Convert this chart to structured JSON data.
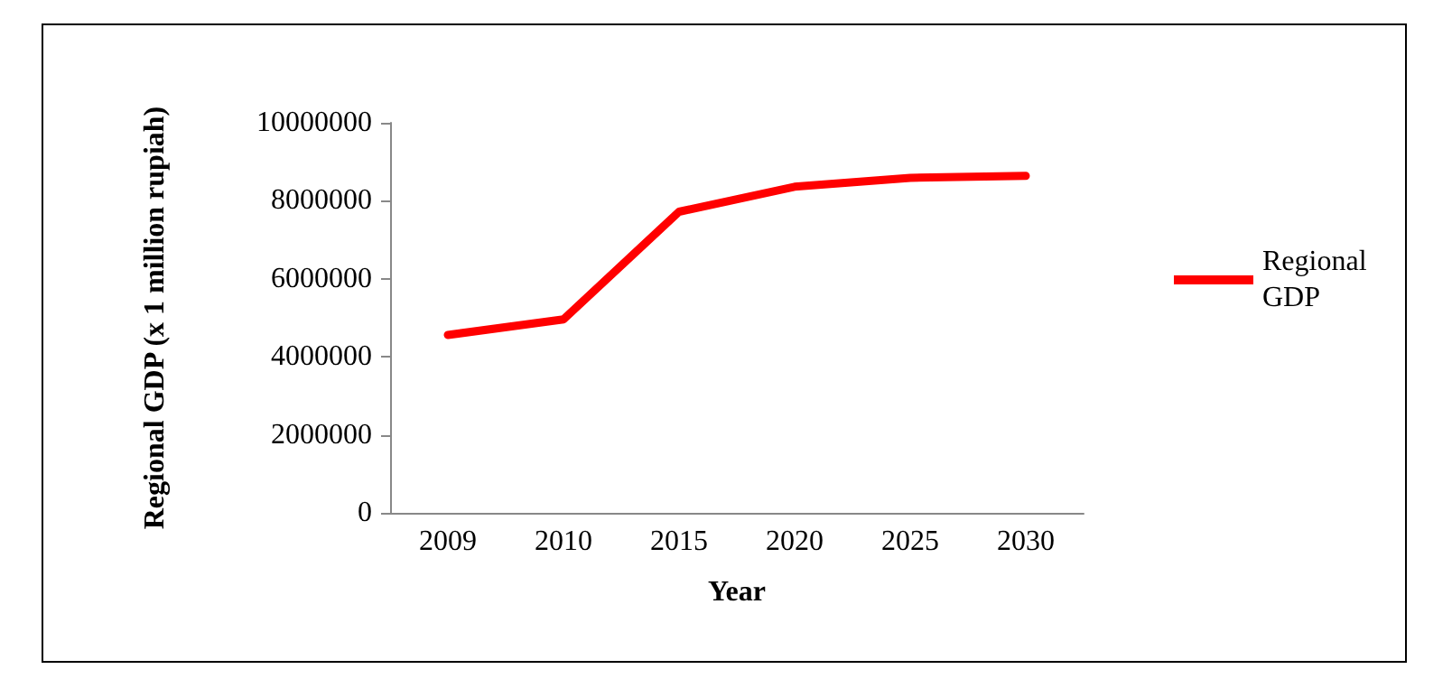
{
  "chart_data": {
    "type": "line",
    "xlabel": "Year",
    "ylabel": "Regional GDP (x 1 million rupiah)",
    "categories": [
      "2009",
      "2010",
      "2015",
      "2020",
      "2025",
      "2030"
    ],
    "series": [
      {
        "name": "Regional GDP",
        "color": "#ff0000",
        "values": [
          4560000,
          4960000,
          7720000,
          8360000,
          8590000,
          8640000
        ]
      }
    ],
    "ylim": [
      0,
      10000000
    ],
    "yticks": [
      0,
      2000000,
      4000000,
      6000000,
      8000000,
      10000000
    ],
    "grid": false,
    "legend": "right",
    "marker": "none",
    "line_style": "solid"
  }
}
